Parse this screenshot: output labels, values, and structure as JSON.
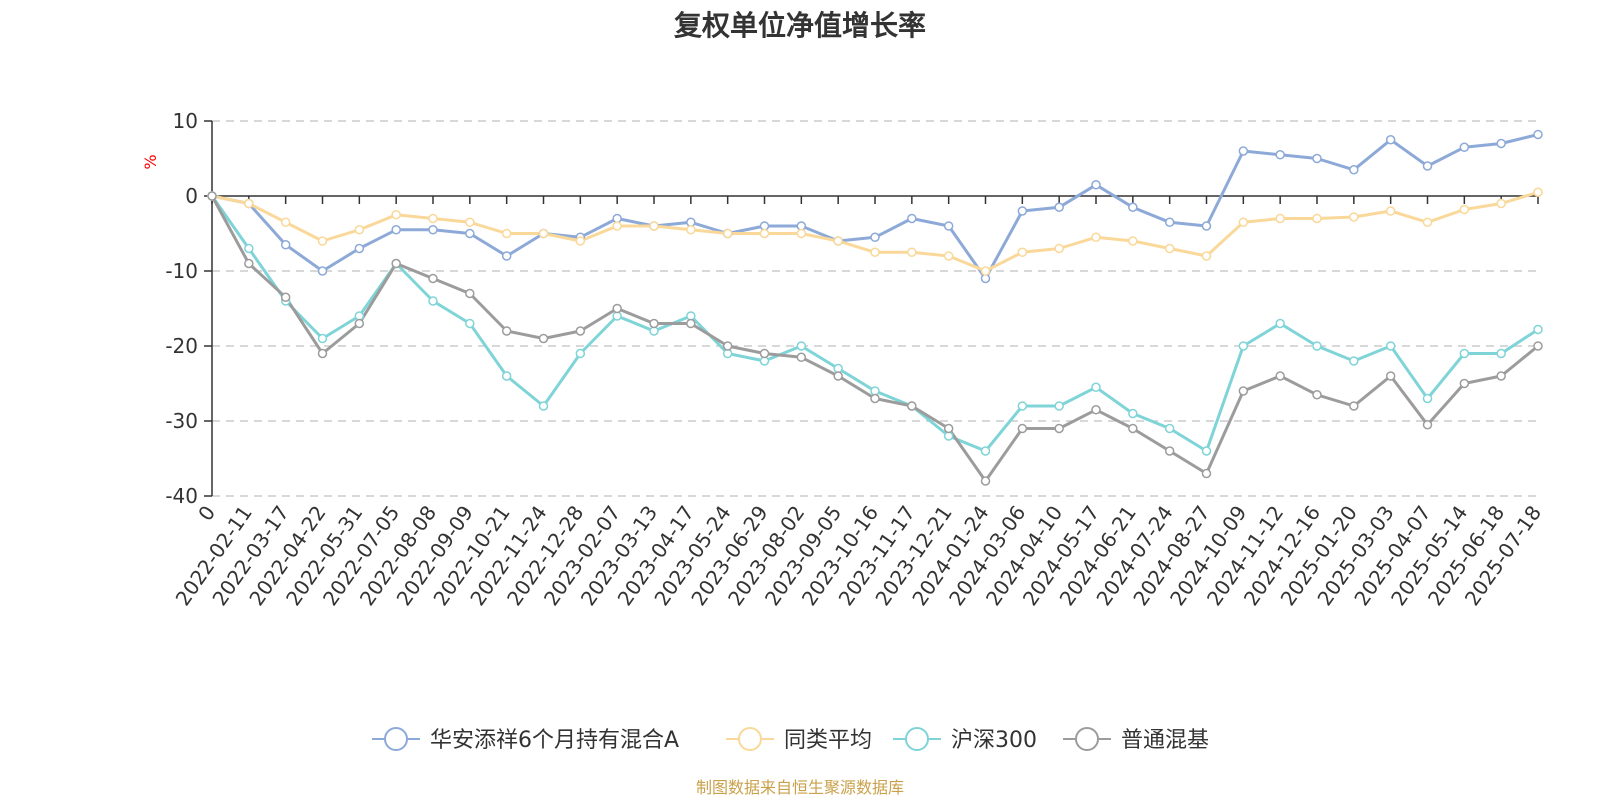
{
  "chart_data": {
    "type": "line",
    "title": "复权单位净值增长率",
    "ylabel": "%",
    "ylim": [
      -40,
      10
    ],
    "yticks": [
      "10",
      "0",
      "-10",
      "-20",
      "-30",
      "-40"
    ],
    "x_tick_labels": [
      "0",
      "2022-02-11",
      "2022-03-17",
      "2022-04-22",
      "2022-05-31",
      "2022-07-05",
      "2022-08-08",
      "2022-09-09",
      "2022-10-21",
      "2022-11-24",
      "2022-12-28",
      "2023-02-07",
      "2023-03-13",
      "2023-04-17",
      "2023-05-24",
      "2023-06-29",
      "2023-08-02",
      "2023-09-05",
      "2023-10-16",
      "2023-11-17",
      "2023-12-21",
      "2024-01-24",
      "2024-03-06",
      "2024-04-10",
      "2024-05-17",
      "2024-06-21",
      "2024-07-24",
      "2024-08-27",
      "2024-10-09",
      "2024-11-12",
      "2024-12-16",
      "2025-01-20",
      "2025-03-03",
      "2025-04-07",
      "2025-05-14",
      "2025-06-18",
      "2025-07-18"
    ],
    "grid": true,
    "legend_position": "bottom",
    "source_note": "制图数据来自恒生聚源数据库",
    "series": [
      {
        "name": "华安添祥6个月持有混合A",
        "color": "#8DA9D8",
        "values": [
          0,
          -1,
          -6.5,
          -10,
          -7,
          -4.5,
          -4.5,
          -5,
          -8,
          -5,
          -5.5,
          -3,
          -4,
          -3.5,
          -5,
          -4,
          -4,
          -6,
          -5.5,
          -3,
          -4,
          -11,
          -2,
          -1.5,
          1.5,
          -1.5,
          -3.5,
          -4,
          6,
          5.5,
          5,
          3.5,
          7.5,
          4,
          6.5,
          7,
          8.2
        ]
      },
      {
        "name": "同类平均",
        "color": "#F9D89A",
        "values": [
          0,
          -1,
          -3.5,
          -6,
          -4.5,
          -2.5,
          -3,
          -3.5,
          -5,
          -5,
          -6,
          -4,
          -4,
          -4.5,
          -5,
          -5,
          -5,
          -6,
          -7.5,
          -7.5,
          -8,
          -10,
          -7.5,
          -7,
          -5.5,
          -6,
          -7,
          -8,
          -3.5,
          -3,
          -3,
          -2.8,
          -2,
          -3.5,
          -1.8,
          -1,
          0.5
        ]
      },
      {
        "name": "沪深300",
        "color": "#7FD4D7",
        "values": [
          0,
          -7,
          -14,
          -19,
          -16,
          -9,
          -14,
          -17,
          -24,
          -28,
          -21,
          -16,
          -18,
          -16,
          -21,
          -22,
          -20,
          -23,
          -26,
          -28,
          -32,
          -34,
          -28,
          -28,
          -25.5,
          -29,
          -31,
          -34,
          -20,
          -17,
          -20,
          -22,
          -20,
          -27,
          -21,
          -21,
          -17.8
        ]
      },
      {
        "name": "普通混基",
        "color": "#9C9C9C",
        "values": [
          0,
          -9,
          -13.5,
          -21,
          -17,
          -9,
          -11,
          -13,
          -18,
          -19,
          -18,
          -15,
          -17,
          -17,
          -20,
          -21,
          -21.5,
          -24,
          -27,
          -28,
          -31,
          -38,
          -31,
          -31,
          -28.5,
          -31,
          -34,
          -37,
          -26,
          -24,
          -26.5,
          -28,
          -24,
          -30.5,
          -25,
          -24,
          -20
        ]
      }
    ]
  }
}
